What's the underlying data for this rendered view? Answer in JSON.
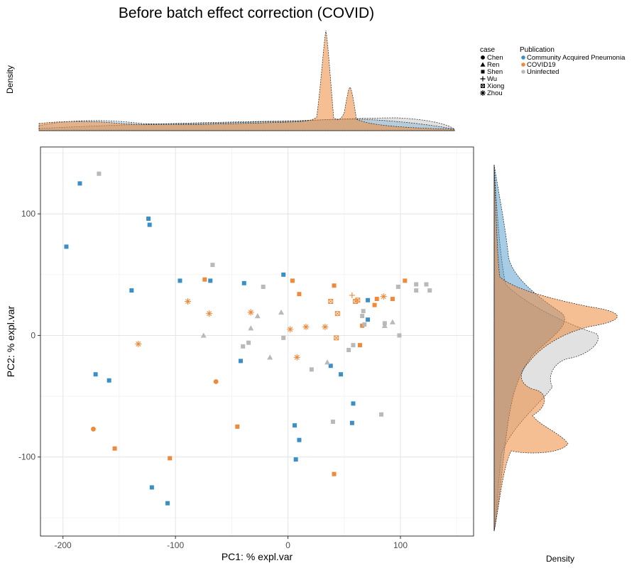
{
  "chart_data": {
    "type": "scatter",
    "title": "Before batch effect correction (COVID)",
    "xlabel": "PC1: % expl.var",
    "ylabel": "PC2: % expl.var",
    "xlim": [
      -220,
      165
    ],
    "ylim": [
      -165,
      155
    ],
    "xticks": [
      -200,
      -100,
      0,
      100
    ],
    "yticks": [
      -100,
      0,
      100
    ],
    "grid": true,
    "top_density_label": "Density",
    "right_density_label": "Density",
    "legend": {
      "placement": "top-right",
      "case_title": "case",
      "case_entries": [
        "Chen",
        "Ren",
        "Shen",
        "Wu",
        "Xiong",
        "Zhou"
      ],
      "publication_title": "Publication",
      "publication_entries": [
        "Community Acquired Pneumonia",
        "COVID19",
        "Uninfected"
      ]
    },
    "colors": {
      "Community Acquired Pneumonia": "#3a8fc7",
      "COVID19": "#ef8a3a",
      "Uninfected": "#b9b9b9"
    },
    "points": [
      {
        "x": -185,
        "y": 125,
        "group": "Community Acquired Pneumonia",
        "case": "Shen"
      },
      {
        "x": -197,
        "y": 73,
        "group": "Community Acquired Pneumonia",
        "case": "Shen"
      },
      {
        "x": -124,
        "y": 96,
        "group": "Community Acquired Pneumonia",
        "case": "Shen"
      },
      {
        "x": -123,
        "y": 91,
        "group": "Community Acquired Pneumonia",
        "case": "Shen"
      },
      {
        "x": -139,
        "y": 37,
        "group": "Community Acquired Pneumonia",
        "case": "Shen"
      },
      {
        "x": -96,
        "y": 45,
        "group": "Community Acquired Pneumonia",
        "case": "Shen"
      },
      {
        "x": -69,
        "y": 45,
        "group": "Community Acquired Pneumonia",
        "case": "Shen"
      },
      {
        "x": -39,
        "y": 43,
        "group": "Community Acquired Pneumonia",
        "case": "Shen"
      },
      {
        "x": -4,
        "y": 50,
        "group": "Community Acquired Pneumonia",
        "case": "Shen"
      },
      {
        "x": 71,
        "y": 29,
        "group": "Community Acquired Pneumonia",
        "case": "Shen"
      },
      {
        "x": 71,
        "y": 13,
        "group": "Community Acquired Pneumonia",
        "case": "Shen"
      },
      {
        "x": -171,
        "y": -32,
        "group": "Community Acquired Pneumonia",
        "case": "Shen"
      },
      {
        "x": -159,
        "y": -37,
        "group": "Community Acquired Pneumonia",
        "case": "Shen"
      },
      {
        "x": -42,
        "y": -21,
        "group": "Community Acquired Pneumonia",
        "case": "Shen"
      },
      {
        "x": 38,
        "y": -25,
        "group": "Community Acquired Pneumonia",
        "case": "Shen"
      },
      {
        "x": 47,
        "y": -32,
        "group": "Community Acquired Pneumonia",
        "case": "Shen"
      },
      {
        "x": 58,
        "y": -56,
        "group": "Community Acquired Pneumonia",
        "case": "Shen"
      },
      {
        "x": 57,
        "y": -72,
        "group": "Community Acquired Pneumonia",
        "case": "Shen"
      },
      {
        "x": 6,
        "y": -74,
        "group": "Community Acquired Pneumonia",
        "case": "Shen"
      },
      {
        "x": 10,
        "y": -86,
        "group": "Community Acquired Pneumonia",
        "case": "Shen"
      },
      {
        "x": 7,
        "y": -102,
        "group": "Community Acquired Pneumonia",
        "case": "Shen"
      },
      {
        "x": -121,
        "y": -125,
        "group": "Community Acquired Pneumonia",
        "case": "Shen"
      },
      {
        "x": -107,
        "y": -138,
        "group": "Community Acquired Pneumonia",
        "case": "Shen"
      },
      {
        "x": -74,
        "y": 46,
        "group": "COVID19",
        "case": "Shen"
      },
      {
        "x": 4,
        "y": 45,
        "group": "COVID19",
        "case": "Shen"
      },
      {
        "x": 10,
        "y": 34,
        "group": "COVID19",
        "case": "Shen"
      },
      {
        "x": 41,
        "y": 41,
        "group": "COVID19",
        "case": "Shen"
      },
      {
        "x": 79,
        "y": 30,
        "group": "COVID19",
        "case": "Shen"
      },
      {
        "x": 93,
        "y": 30,
        "group": "COVID19",
        "case": "Shen"
      },
      {
        "x": 77,
        "y": 25,
        "group": "COVID19",
        "case": "Shen"
      },
      {
        "x": 104,
        "y": 45,
        "group": "COVID19",
        "case": "Shen"
      },
      {
        "x": 66,
        "y": 8,
        "group": "COVID19",
        "case": "Shen"
      },
      {
        "x": 64,
        "y": -8,
        "group": "COVID19",
        "case": "Shen"
      },
      {
        "x": -45,
        "y": -75,
        "group": "COVID19",
        "case": "Shen"
      },
      {
        "x": -154,
        "y": -93,
        "group": "COVID19",
        "case": "Shen"
      },
      {
        "x": -105,
        "y": -101,
        "group": "COVID19",
        "case": "Shen"
      },
      {
        "x": 41,
        "y": -114,
        "group": "COVID19",
        "case": "Shen"
      },
      {
        "x": -64,
        "y": -38,
        "group": "COVID19",
        "case": "Chen"
      },
      {
        "x": -173,
        "y": -77,
        "group": "COVID19",
        "case": "Chen"
      },
      {
        "x": -89,
        "y": 28,
        "group": "COVID19",
        "case": "Zhou"
      },
      {
        "x": -70,
        "y": 18,
        "group": "COVID19",
        "case": "Zhou"
      },
      {
        "x": -33,
        "y": 19,
        "group": "COVID19",
        "case": "Zhou"
      },
      {
        "x": -133,
        "y": -7,
        "group": "COVID19",
        "case": "Zhou"
      },
      {
        "x": 2,
        "y": 5,
        "group": "COVID19",
        "case": "Zhou"
      },
      {
        "x": 16,
        "y": 7,
        "group": "COVID19",
        "case": "Zhou"
      },
      {
        "x": 33,
        "y": 7,
        "group": "COVID19",
        "case": "Zhou"
      },
      {
        "x": 8,
        "y": -18,
        "group": "COVID19",
        "case": "Zhou"
      },
      {
        "x": 85,
        "y": 32,
        "group": "COVID19",
        "case": "Zhou"
      },
      {
        "x": 57,
        "y": 33,
        "group": "COVID19",
        "case": "Wu"
      },
      {
        "x": 38,
        "y": 28,
        "group": "COVID19",
        "case": "Xiong"
      },
      {
        "x": 62,
        "y": 29,
        "group": "COVID19",
        "case": "Xiong"
      },
      {
        "x": 60,
        "y": 28,
        "group": "COVID19",
        "case": "Xiong"
      },
      {
        "x": 44,
        "y": 18,
        "group": "COVID19",
        "case": "Xiong"
      },
      {
        "x": 43,
        "y": -2,
        "group": "COVID19",
        "case": "Xiong"
      },
      {
        "x": -168,
        "y": 133,
        "group": "Uninfected",
        "case": "Shen"
      },
      {
        "x": -67,
        "y": 58,
        "group": "Uninfected",
        "case": "Shen"
      },
      {
        "x": -22,
        "y": 40,
        "group": "Uninfected",
        "case": "Shen"
      },
      {
        "x": -4,
        "y": -2,
        "group": "Uninfected",
        "case": "Shen"
      },
      {
        "x": -35,
        "y": -6,
        "group": "Uninfected",
        "case": "Shen"
      },
      {
        "x": -40,
        "y": -9,
        "group": "Uninfected",
        "case": "Shen"
      },
      {
        "x": 21,
        "y": -28,
        "group": "Uninfected",
        "case": "Shen"
      },
      {
        "x": 40,
        "y": -71,
        "group": "Uninfected",
        "case": "Shen"
      },
      {
        "x": 83,
        "y": -65,
        "group": "Uninfected",
        "case": "Shen"
      },
      {
        "x": 54,
        "y": -12,
        "group": "Uninfected",
        "case": "Shen"
      },
      {
        "x": 58,
        "y": -8,
        "group": "Uninfected",
        "case": "Shen"
      },
      {
        "x": 66,
        "y": 16,
        "group": "Uninfected",
        "case": "Shen"
      },
      {
        "x": 68,
        "y": 9,
        "group": "Uninfected",
        "case": "Shen"
      },
      {
        "x": 86,
        "y": 10,
        "group": "Uninfected",
        "case": "Shen"
      },
      {
        "x": 99,
        "y": 0,
        "group": "Uninfected",
        "case": "Shen"
      },
      {
        "x": 98,
        "y": 40,
        "group": "Uninfected",
        "case": "Shen"
      },
      {
        "x": 114,
        "y": 42,
        "group": "Uninfected",
        "case": "Shen"
      },
      {
        "x": 123,
        "y": 42,
        "group": "Uninfected",
        "case": "Shen"
      },
      {
        "x": 114,
        "y": 37,
        "group": "Uninfected",
        "case": "Shen"
      },
      {
        "x": 126,
        "y": 37,
        "group": "Uninfected",
        "case": "Shen"
      },
      {
        "x": 67,
        "y": 20,
        "group": "Uninfected",
        "case": "Shen"
      },
      {
        "x": -6,
        "y": 19,
        "group": "Uninfected",
        "case": "Ren"
      },
      {
        "x": -33,
        "y": 6,
        "group": "Uninfected",
        "case": "Ren"
      },
      {
        "x": -27,
        "y": 16,
        "group": "Uninfected",
        "case": "Ren"
      },
      {
        "x": -75,
        "y": 0,
        "group": "Uninfected",
        "case": "Ren"
      },
      {
        "x": -16,
        "y": -18,
        "group": "Uninfected",
        "case": "Ren"
      },
      {
        "x": 35,
        "y": -22,
        "group": "Uninfected",
        "case": "Ren"
      },
      {
        "x": 93,
        "y": 11,
        "group": "Uninfected",
        "case": "Ren"
      },
      {
        "x": 86,
        "y": 8,
        "group": "Uninfected",
        "case": "Ren"
      }
    ]
  }
}
